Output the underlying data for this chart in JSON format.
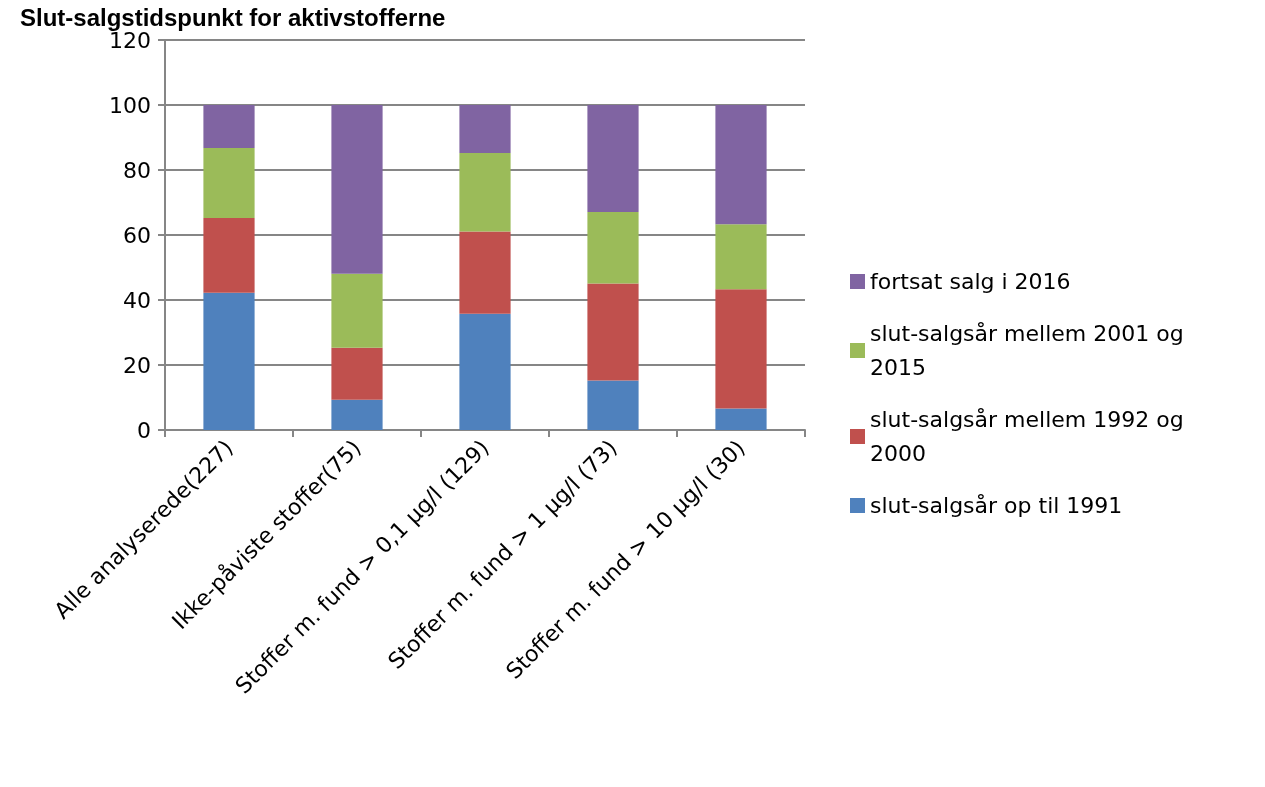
{
  "chart_data": {
    "type": "bar",
    "title": "Slut-salgstidspunkt for aktivstofferne",
    "categories": [
      "Alle analyserede(227)",
      "Ikke-påviste stoffer(75)",
      "Stoffer m. fund > 0,1 µg/l (129)",
      "Stoffer m. fund > 1 µg/l (73)",
      "Stoffer m. fund > 10 µg/l (30)"
    ],
    "stacked": true,
    "series": [
      {
        "name": "slut-salgsår op til 1991",
        "color": "#4f81bd",
        "values": [
          42.2,
          9.3,
          35.8,
          15.2,
          6.6
        ]
      },
      {
        "name": "slut-salgsår mellem 1992 og 2000",
        "color": "#c0504d",
        "values": [
          23.0,
          16.0,
          25.3,
          29.9,
          36.7
        ]
      },
      {
        "name": "slut-salgsår mellem 2001 og 2015",
        "color": "#9bbb59",
        "values": [
          21.6,
          22.8,
          24.1,
          22.0,
          20.0
        ]
      },
      {
        "name": "fortsat salg i 2016",
        "color": "#8064a2",
        "values": [
          13.2,
          51.9,
          14.8,
          32.9,
          36.7
        ]
      }
    ],
    "ylim": [
      0,
      120
    ],
    "yticks": [
      0,
      20,
      40,
      60,
      80,
      100,
      120
    ],
    "grid": "y",
    "legend": "right"
  }
}
